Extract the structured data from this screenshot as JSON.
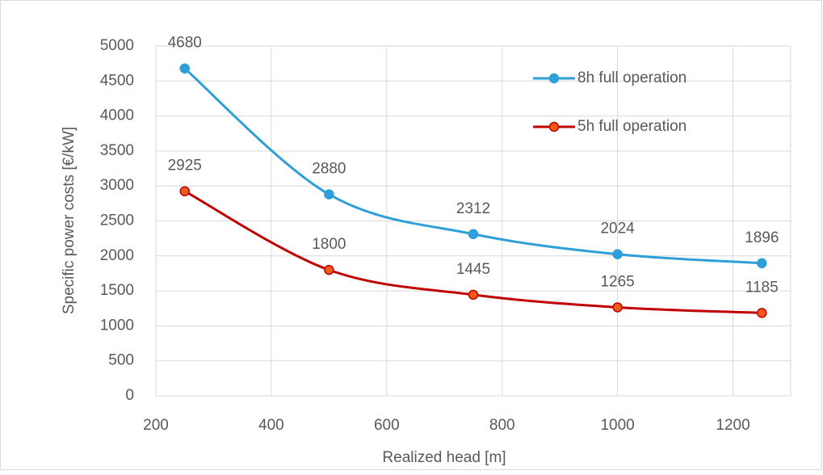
{
  "chart_data": {
    "type": "line",
    "x_label": "Realized head [m]",
    "y_label": "Specific power costs [€/kW]",
    "x": [
      250,
      500,
      750,
      1000,
      1250
    ],
    "series": [
      {
        "name": "8h full operation",
        "color": "#2e9fd8",
        "values": [
          4680,
          2880,
          2312,
          2024,
          1896
        ]
      },
      {
        "name": "5h full operation",
        "color": "#c00000",
        "values": [
          2925,
          1800,
          1445,
          1265,
          1185
        ]
      }
    ],
    "xlim": [
      200,
      1300
    ],
    "xticks": [
      200,
      400,
      600,
      800,
      1000,
      1200
    ],
    "ylim": [
      0,
      5000
    ],
    "yticks": [
      0,
      500,
      1000,
      1500,
      2000,
      2500,
      3000,
      3500,
      4000,
      4500,
      5000
    ],
    "grid": true,
    "smooth": true,
    "data_labels": true,
    "legend": "upper right"
  }
}
